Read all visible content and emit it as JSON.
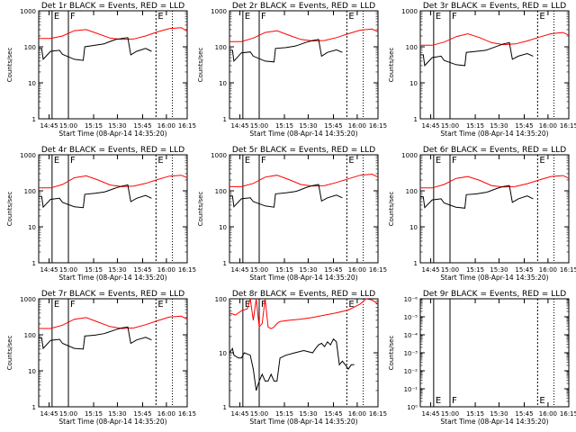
{
  "chart_data": [
    {
      "type": "line",
      "title": "Det 1r BLACK = Events, RED = LLD",
      "xlabel": "Start Time (08-Apr-14 14:35:20)",
      "ylabel": "Counts/sec",
      "yscale": "log",
      "ylim": [
        1,
        1000
      ],
      "x_ticks": [
        "14:45",
        "15:00",
        "15:15",
        "15:30",
        "15:45",
        "16:00",
        "16:15"
      ],
      "y_ticks": [
        "1",
        "10",
        "100",
        "1000"
      ],
      "markers": [
        "E",
        "F",
        "E"
      ],
      "series": [
        {
          "color": "#ff0000",
          "x": [
            0,
            8,
            16,
            24,
            32,
            40,
            48,
            56,
            64,
            72,
            80,
            88,
            96,
            100
          ],
          "y": [
            170,
            170,
            200,
            280,
            300,
            230,
            175,
            160,
            165,
            200,
            260,
            320,
            340,
            270
          ]
        },
        {
          "color": "#000000",
          "x": [
            0,
            2,
            3,
            8,
            14,
            16,
            24,
            30,
            31,
            38,
            44,
            46,
            52,
            56,
            60,
            62,
            66,
            72,
            76,
            78,
            80
          ],
          "y": [
            90,
            90,
            45,
            75,
            80,
            62,
            45,
            42,
            100,
            110,
            120,
            130,
            160,
            170,
            180,
            60,
            75,
            90,
            75,
            0,
            0
          ]
        }
      ]
    },
    {
      "type": "line",
      "title": "Det 2r BLACK = Events, RED = LLD",
      "xlabel": "Start Time (08-Apr-14 14:35:20)",
      "ylabel": "Counts/sec",
      "yscale": "log",
      "ylim": [
        1,
        1000
      ],
      "x_ticks": [
        "14:45",
        "15:00",
        "15:15",
        "15:30",
        "15:45",
        "16:00",
        "16:15"
      ],
      "y_ticks": [
        "1",
        "10",
        "100",
        "1000"
      ],
      "markers": [
        "E",
        "F",
        "E"
      ],
      "series": [
        {
          "color": "#ff0000",
          "x": [
            0,
            8,
            16,
            24,
            32,
            40,
            48,
            56,
            64,
            72,
            80,
            88,
            96,
            100
          ],
          "y": [
            140,
            140,
            175,
            250,
            280,
            210,
            160,
            145,
            150,
            180,
            230,
            290,
            310,
            260
          ]
        },
        {
          "color": "#000000",
          "x": [
            0,
            2,
            3,
            8,
            14,
            16,
            24,
            30,
            31,
            38,
            44,
            46,
            52,
            56,
            60,
            62,
            66,
            72,
            76
          ],
          "y": [
            80,
            80,
            40,
            68,
            72,
            55,
            40,
            38,
            90,
            95,
            105,
            110,
            135,
            150,
            160,
            55,
            70,
            82,
            70
          ]
        }
      ]
    },
    {
      "type": "line",
      "title": "Det 3r BLACK = Events, RED = LLD",
      "xlabel": "Start Time (08-Apr-14 14:35:20)",
      "ylabel": "Counts/sec",
      "yscale": "log",
      "ylim": [
        1,
        1000
      ],
      "x_ticks": [
        "14:45",
        "15:00",
        "15:15",
        "15:30",
        "15:45",
        "16:00",
        "16:15"
      ],
      "y_ticks": [
        "1",
        "10",
        "100",
        "1000"
      ],
      "markers": [
        "E",
        "F",
        "E"
      ],
      "series": [
        {
          "color": "#ff0000",
          "x": [
            0,
            8,
            16,
            24,
            32,
            40,
            48,
            56,
            64,
            72,
            80,
            88,
            96,
            100
          ],
          "y": [
            110,
            110,
            135,
            190,
            230,
            180,
            130,
            115,
            120,
            145,
            185,
            230,
            250,
            210
          ]
        },
        {
          "color": "#000000",
          "x": [
            0,
            2,
            3,
            8,
            14,
            16,
            24,
            30,
            31,
            38,
            44,
            46,
            52,
            56,
            60,
            62,
            66,
            72,
            76
          ],
          "y": [
            60,
            60,
            30,
            50,
            55,
            42,
            32,
            30,
            70,
            75,
            80,
            85,
            105,
            120,
            130,
            45,
            55,
            65,
            55
          ]
        }
      ]
    },
    {
      "type": "line",
      "title": "Det 4r BLACK = Events, RED = LLD",
      "xlabel": "Start Time (08-Apr-14 14:35:20)",
      "ylabel": "Counts/sec",
      "yscale": "log",
      "ylim": [
        1,
        1000
      ],
      "x_ticks": [
        "14:45",
        "15:00",
        "15:15",
        "15:30",
        "15:45",
        "16:00",
        "16:15"
      ],
      "y_ticks": [
        "1",
        "10",
        "100",
        "1000"
      ],
      "markers": [
        "E",
        "F",
        "E"
      ],
      "series": [
        {
          "color": "#ff0000",
          "x": [
            0,
            8,
            16,
            24,
            32,
            40,
            48,
            56,
            64,
            72,
            80,
            88,
            96,
            100
          ],
          "y": [
            120,
            120,
            150,
            230,
            260,
            200,
            145,
            130,
            135,
            160,
            205,
            255,
            270,
            230
          ]
        },
        {
          "color": "#000000",
          "x": [
            0,
            2,
            3,
            8,
            14,
            16,
            24,
            30,
            31,
            38,
            44,
            46,
            52,
            56,
            60,
            62,
            66,
            72,
            76
          ],
          "y": [
            70,
            70,
            35,
            58,
            62,
            48,
            36,
            34,
            80,
            85,
            92,
            98,
            120,
            135,
            145,
            50,
            62,
            74,
            62
          ]
        }
      ]
    },
    {
      "type": "line",
      "title": "Det 5r BLACK = Events, RED = LLD",
      "xlabel": "Start Time (08-Apr-14 14:35:20)",
      "ylabel": "Counts/sec",
      "yscale": "log",
      "ylim": [
        1,
        1000
      ],
      "x_ticks": [
        "14:45",
        "15:00",
        "15:15",
        "15:30",
        "15:45",
        "16:00",
        "16:15"
      ],
      "y_ticks": [
        "1",
        "10",
        "100",
        "1000"
      ],
      "markers": [
        "E",
        "F",
        "E"
      ],
      "series": [
        {
          "color": "#ff0000",
          "x": [
            0,
            8,
            16,
            24,
            32,
            40,
            48,
            56,
            64,
            72,
            80,
            88,
            96,
            100
          ],
          "y": [
            130,
            130,
            160,
            240,
            270,
            205,
            150,
            135,
            140,
            170,
            215,
            270,
            290,
            240
          ]
        },
        {
          "color": "#000000",
          "x": [
            0,
            2,
            3,
            8,
            14,
            16,
            24,
            30,
            31,
            38,
            44,
            46,
            52,
            56,
            60,
            62,
            66,
            72,
            76
          ],
          "y": [
            72,
            72,
            36,
            60,
            64,
            50,
            38,
            35,
            82,
            88,
            95,
            100,
            125,
            140,
            150,
            52,
            64,
            76,
            64
          ]
        }
      ]
    },
    {
      "type": "line",
      "title": "Det 6r BLACK = Events, RED = LLD",
      "xlabel": "Start Time (08-Apr-14 14:35:20)",
      "ylabel": "Counts/sec",
      "yscale": "log",
      "ylim": [
        1,
        1000
      ],
      "x_ticks": [
        "14:45",
        "15:00",
        "15:15",
        "15:30",
        "15:45",
        "16:00",
        "16:15"
      ],
      "y_ticks": [
        "1",
        "10",
        "100",
        "1000"
      ],
      "markers": [
        "E",
        "F",
        "E"
      ],
      "series": [
        {
          "color": "#ff0000",
          "x": [
            0,
            8,
            16,
            24,
            32,
            40,
            48,
            56,
            64,
            72,
            80,
            88,
            96,
            100
          ],
          "y": [
            120,
            120,
            150,
            220,
            250,
            195,
            140,
            128,
            132,
            158,
            200,
            250,
            265,
            225
          ]
        },
        {
          "color": "#000000",
          "x": [
            0,
            2,
            3,
            8,
            14,
            16,
            24,
            30,
            31,
            38,
            44,
            46,
            52,
            56,
            60,
            62,
            66,
            72,
            76
          ],
          "y": [
            68,
            68,
            34,
            56,
            60,
            46,
            35,
            33,
            78,
            82,
            90,
            95,
            118,
            132,
            140,
            48,
            60,
            72,
            60
          ]
        }
      ]
    },
    {
      "type": "line",
      "title": "Det 7r BLACK = Events, RED = LLD",
      "xlabel": "Start Time (08-Apr-14 14:35:20)",
      "ylabel": "Counts/sec",
      "yscale": "log",
      "ylim": [
        1,
        1000
      ],
      "x_ticks": [
        "14:45",
        "15:00",
        "15:15",
        "15:30",
        "15:45",
        "16:00",
        "16:15"
      ],
      "y_ticks": [
        "1",
        "10",
        "100",
        "1000"
      ],
      "markers": [
        "E",
        "F",
        "E"
      ],
      "series": [
        {
          "color": "#ff0000",
          "x": [
            0,
            8,
            16,
            24,
            32,
            40,
            48,
            56,
            64,
            72,
            80,
            88,
            96,
            100
          ],
          "y": [
            150,
            150,
            185,
            270,
            300,
            225,
            170,
            150,
            155,
            190,
            245,
            310,
            330,
            270
          ]
        },
        {
          "color": "#000000",
          "x": [
            0,
            2,
            3,
            8,
            14,
            16,
            24,
            30,
            31,
            38,
            44,
            46,
            52,
            56,
            60,
            62,
            66,
            72,
            76
          ],
          "y": [
            82,
            82,
            42,
            70,
            75,
            58,
            42,
            40,
            92,
            98,
            108,
            115,
            140,
            155,
            165,
            58,
            72,
            85,
            72
          ]
        }
      ]
    },
    {
      "type": "line",
      "title": "Det 8r BLACK = Events, RED = LLD",
      "xlabel": "Start Time (08-Apr-14 14:35:20)",
      "ylabel": "",
      "yscale": "log",
      "ylim": [
        1,
        100
      ],
      "x_ticks": [
        "14:45",
        "15:00",
        "15:15",
        "15:30",
        "15:45",
        "16:00",
        "16:15"
      ],
      "y_ticks": [
        "1",
        "10",
        "100"
      ],
      "markers": [
        "E",
        "F",
        "E"
      ],
      "series": [
        {
          "color": "#ff0000",
          "x": [
            0,
            4,
            8,
            12,
            14,
            16,
            18,
            20,
            22,
            24,
            26,
            28,
            30,
            32,
            34,
            40,
            48,
            56,
            64,
            72,
            80,
            88,
            92,
            96,
            100
          ],
          "y": [
            55,
            50,
            60,
            65,
            100,
            40,
            100,
            30,
            35,
            100,
            30,
            28,
            30,
            35,
            38,
            40,
            42,
            45,
            50,
            55,
            62,
            80,
            100,
            95,
            80
          ]
        },
        {
          "color": "#000000",
          "x": [
            0,
            2,
            3,
            6,
            8,
            10,
            14,
            16,
            18,
            20,
            22,
            24,
            26,
            28,
            30,
            32,
            34,
            38,
            44,
            50,
            56,
            58,
            60,
            62,
            64,
            66,
            68,
            70,
            72,
            74,
            76,
            78,
            80,
            82,
            84
          ],
          "y": [
            10,
            12,
            9,
            8,
            8,
            10,
            9,
            5,
            2,
            3,
            4,
            3,
            3,
            4,
            3,
            3,
            8,
            9,
            10,
            11,
            10,
            12,
            14,
            15,
            13,
            16,
            14,
            18,
            16,
            6,
            7,
            6,
            5,
            6,
            6
          ]
        }
      ]
    },
    {
      "type": "line",
      "title": "Det 9r BLACK = Events, RED = LLD",
      "xlabel": "Start Time (08-Apr-14 14:35:20)",
      "ylabel": "Counts/sec",
      "yscale": "log",
      "ylim": [
        1e-06,
        1
      ],
      "x_ticks": [
        "14:45",
        "15:00",
        "15:15",
        "15:30",
        "15:45",
        "16:00",
        "16:15"
      ],
      "y_ticks": [
        "10⁰",
        "10⁻¹",
        "10⁻²",
        "10⁻³",
        "10⁻⁴",
        "10⁻⁵",
        "10⁻⁶"
      ],
      "markers": [
        "E",
        "F",
        "E"
      ],
      "series": []
    }
  ]
}
